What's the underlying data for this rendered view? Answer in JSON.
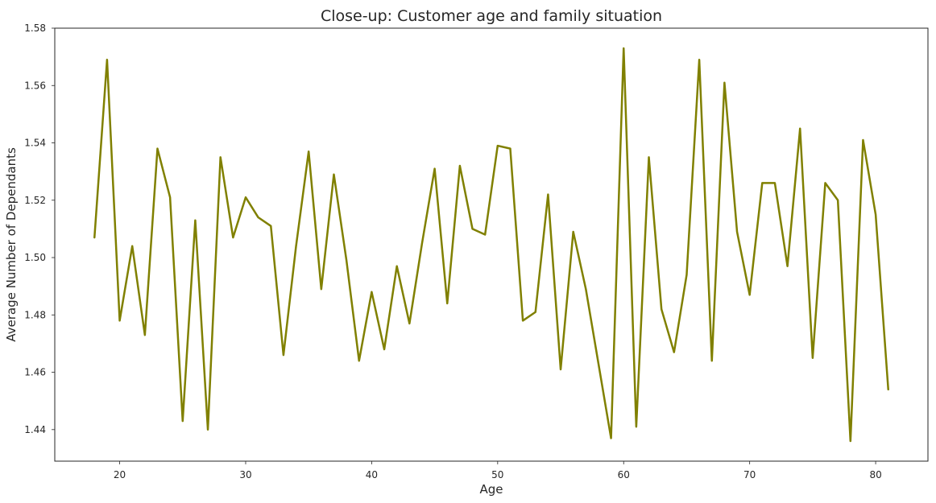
{
  "chart_data": {
    "type": "line",
    "title": "Close-up: Customer age and family situation",
    "xlabel": "Age",
    "ylabel": "Average Number of Dependants",
    "xlim": [
      14.85,
      84.15
    ],
    "ylim": [
      1.429,
      1.58
    ],
    "xticks": [
      20,
      30,
      40,
      50,
      60,
      70,
      80
    ],
    "yticks": [
      1.44,
      1.46,
      1.48,
      1.5,
      1.52,
      1.54,
      1.56,
      1.58
    ],
    "xtick_labels": [
      "20",
      "30",
      "40",
      "50",
      "60",
      "70",
      "80"
    ],
    "ytick_labels": [
      "1.44",
      "1.46",
      "1.48",
      "1.50",
      "1.52",
      "1.54",
      "1.56",
      "1.58"
    ],
    "grid": false,
    "line_color": "#808000",
    "series": [
      {
        "x": [
          18,
          19,
          20,
          21,
          22,
          23,
          24,
          25,
          26,
          27,
          28,
          29,
          30,
          31,
          32,
          33,
          34,
          35,
          36,
          37,
          38,
          39,
          40,
          41,
          42,
          43,
          44,
          45,
          46,
          47,
          48,
          49,
          50,
          51,
          52,
          53,
          54,
          55,
          56,
          57,
          58,
          59,
          60,
          61,
          62,
          63,
          64,
          65,
          66,
          67,
          68,
          69,
          70,
          71,
          72,
          73,
          74,
          75,
          76,
          77,
          78,
          79,
          80,
          81
        ],
        "values": [
          1.507,
          1.569,
          1.478,
          1.504,
          1.473,
          1.538,
          1.521,
          1.443,
          1.513,
          1.44,
          1.535,
          1.507,
          1.521,
          1.514,
          1.511,
          1.466,
          1.504,
          1.537,
          1.489,
          1.529,
          1.499,
          1.464,
          1.488,
          1.468,
          1.497,
          1.477,
          1.505,
          1.531,
          1.484,
          1.532,
          1.51,
          1.508,
          1.539,
          1.538,
          1.478,
          1.481,
          1.522,
          1.461,
          1.509,
          1.489,
          1.463,
          1.437,
          1.573,
          1.441,
          1.535,
          1.482,
          1.467,
          1.494,
          1.569,
          1.464,
          1.561,
          1.509,
          1.487,
          1.526,
          1.526,
          1.497,
          1.545,
          1.465,
          1.526,
          1.52,
          1.436,
          1.541,
          1.515,
          1.454
        ]
      }
    ]
  }
}
